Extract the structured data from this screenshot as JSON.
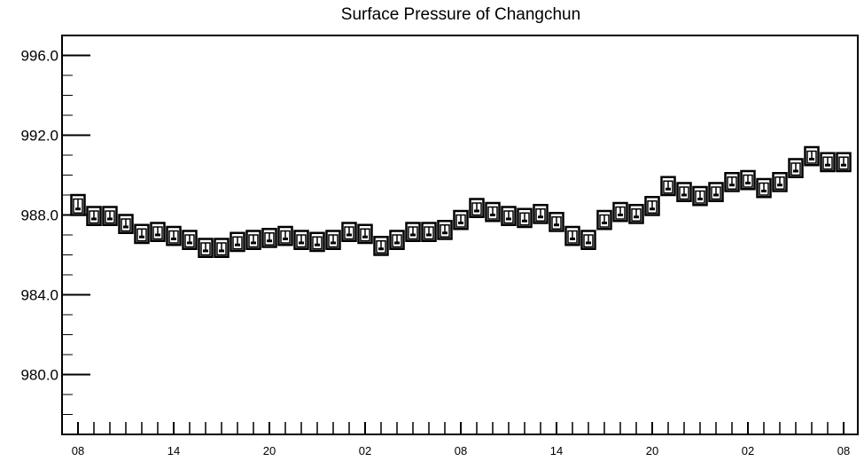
{
  "chart_data": {
    "type": "box",
    "title": "Surface Pressure of Changchun",
    "xlabel": "",
    "ylabel": "",
    "ylim": [
      977.0,
      997.0
    ],
    "yticks": [
      "996.0",
      "992.0",
      "988.0",
      "984.0",
      "980.0"
    ],
    "ytick_values": [
      996,
      992,
      988,
      984,
      980
    ],
    "xtick_labels": [
      "08",
      "14",
      "20",
      "02",
      "08",
      "14",
      "20",
      "02",
      "08"
    ],
    "xtick_indices": [
      0,
      6,
      12,
      18,
      24,
      30,
      36,
      42,
      48
    ],
    "n_points": 49,
    "grid": false,
    "series": [
      {
        "name": "",
        "median": [
          988.3,
          987.8,
          987.8,
          987.4,
          986.9,
          987.0,
          986.8,
          986.6,
          986.2,
          986.2,
          986.5,
          986.6,
          986.7,
          986.8,
          986.6,
          986.5,
          986.6,
          987.0,
          986.9,
          986.3,
          986.6,
          987.0,
          987.0,
          987.1,
          987.6,
          988.2,
          988.0,
          987.8,
          987.7,
          987.9,
          987.5,
          986.8,
          986.6,
          987.6,
          988.0,
          987.9,
          988.3,
          989.3,
          989.0,
          988.8,
          989.0,
          989.5,
          989.6,
          989.2,
          989.5,
          990.2,
          990.8,
          990.5,
          990.5
        ],
        "q1": [
          988.1,
          987.6,
          987.6,
          987.2,
          986.7,
          986.8,
          986.6,
          986.4,
          986.0,
          986.0,
          986.3,
          986.4,
          986.5,
          986.6,
          986.4,
          986.3,
          986.4,
          986.8,
          986.7,
          986.1,
          986.4,
          986.8,
          986.8,
          986.9,
          987.4,
          988.0,
          987.8,
          987.6,
          987.5,
          987.7,
          987.3,
          986.6,
          986.4,
          987.4,
          987.8,
          987.7,
          988.1,
          989.1,
          988.8,
          988.6,
          988.8,
          989.3,
          989.4,
          989.0,
          989.3,
          990.0,
          990.6,
          990.3,
          990.3
        ],
        "q3": [
          988.8,
          988.2,
          988.2,
          987.8,
          987.3,
          987.4,
          987.2,
          987.0,
          986.6,
          986.6,
          986.9,
          987.0,
          987.1,
          987.2,
          987.0,
          986.9,
          987.0,
          987.4,
          987.3,
          986.7,
          987.0,
          987.4,
          987.4,
          987.5,
          988.0,
          988.6,
          988.4,
          988.2,
          988.1,
          988.3,
          987.9,
          987.2,
          987.0,
          988.0,
          988.4,
          988.3,
          988.7,
          989.7,
          989.4,
          989.2,
          989.4,
          989.9,
          990.0,
          989.6,
          989.9,
          990.6,
          991.2,
          990.9,
          990.9
        ],
        "min": [
          988.0,
          987.5,
          987.5,
          987.1,
          986.6,
          986.7,
          986.5,
          986.3,
          985.9,
          985.9,
          986.2,
          986.3,
          986.4,
          986.5,
          986.3,
          986.2,
          986.3,
          986.7,
          986.6,
          986.0,
          986.3,
          986.7,
          986.7,
          986.8,
          987.3,
          987.9,
          987.7,
          987.5,
          987.4,
          987.6,
          987.2,
          986.5,
          986.3,
          987.3,
          987.7,
          987.6,
          988.0,
          989.0,
          988.7,
          988.5,
          988.7,
          989.2,
          989.3,
          988.9,
          989.2,
          989.9,
          990.5,
          990.2,
          990.2
        ],
        "max": [
          989.0,
          988.4,
          988.4,
          988.0,
          987.5,
          987.6,
          987.4,
          987.2,
          986.8,
          986.8,
          987.1,
          987.2,
          987.3,
          987.4,
          987.2,
          987.1,
          987.2,
          987.6,
          987.5,
          986.9,
          987.2,
          987.6,
          987.6,
          987.7,
          988.2,
          988.8,
          988.6,
          988.4,
          988.3,
          988.5,
          988.1,
          987.4,
          987.2,
          988.2,
          988.6,
          988.5,
          988.9,
          989.9,
          989.6,
          989.4,
          989.6,
          990.1,
          990.2,
          989.8,
          990.1,
          990.8,
          991.4,
          991.1,
          991.1
        ]
      }
    ]
  }
}
